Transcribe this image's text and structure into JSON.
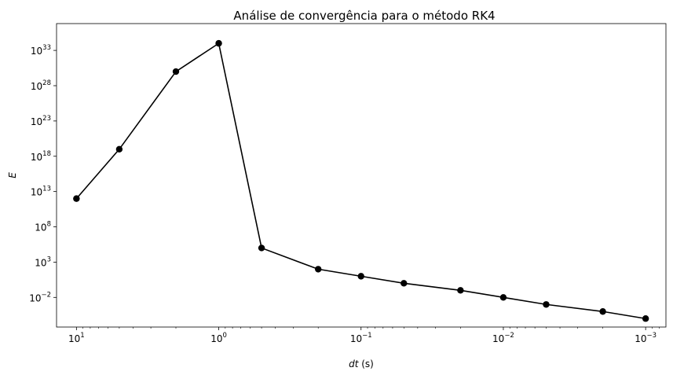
{
  "chart_data": {
    "type": "line",
    "title": "Análise de convergência para o método RK4",
    "xlabel_var": "dt",
    "xlabel_unit": " (s)",
    "ylabel": "E",
    "x_scale": "log",
    "y_scale": "log",
    "x_inverted": true,
    "grid": false,
    "line_color": "#000000",
    "marker": "circle",
    "xlim": [
      13.8,
      0.00072
    ],
    "ylim_exp": [
      -6.2,
      36.8
    ],
    "x_ticks": [
      {
        "value": 10,
        "base": "10",
        "exp": "1"
      },
      {
        "value": 1,
        "base": "10",
        "exp": "0"
      },
      {
        "value": 0.1,
        "base": "10",
        "exp": "−1"
      },
      {
        "value": 0.01,
        "base": "10",
        "exp": "−2"
      },
      {
        "value": 0.001,
        "base": "10",
        "exp": "−3"
      }
    ],
    "y_ticks": [
      {
        "exp_value": -2,
        "base": "10",
        "exp": "−2"
      },
      {
        "exp_value": 3,
        "base": "10",
        "exp": "3"
      },
      {
        "exp_value": 8,
        "base": "10",
        "exp": "8"
      },
      {
        "exp_value": 13,
        "base": "10",
        "exp": "13"
      },
      {
        "exp_value": 18,
        "base": "10",
        "exp": "18"
      },
      {
        "exp_value": 23,
        "base": "10",
        "exp": "23"
      },
      {
        "exp_value": 28,
        "base": "10",
        "exp": "28"
      },
      {
        "exp_value": 33,
        "base": "10",
        "exp": "33"
      }
    ],
    "series": [
      {
        "x": [
          10,
          5,
          2,
          1,
          0.5,
          0.2,
          0.1,
          0.05,
          0.02,
          0.01,
          0.005,
          0.002,
          0.001
        ],
        "y": [
          1000000000000.0,
          1e+19,
          1e+30,
          1e+34,
          100000.0,
          100.0,
          10.0,
          1.0,
          0.1,
          0.01,
          0.001,
          0.0001,
          1e-05
        ]
      }
    ]
  }
}
